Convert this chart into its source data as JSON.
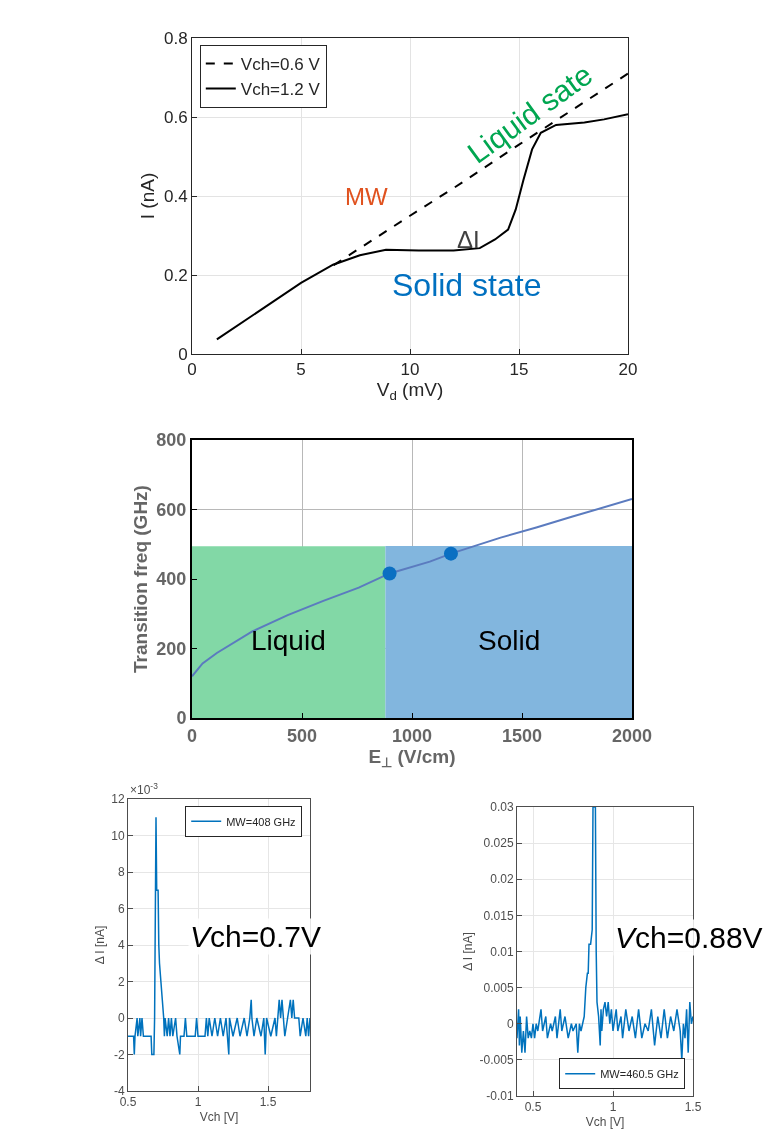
{
  "chart_data": [
    {
      "type": "line",
      "xlabel": "V$_{d}$ (mV)",
      "ylabel": "I (nA)",
      "xlim": [
        0,
        20
      ],
      "ylim": [
        0,
        0.8
      ],
      "xticks": [
        0,
        5,
        10,
        15,
        20
      ],
      "yticks": [
        0,
        0.2,
        0.4,
        0.6,
        0.8
      ],
      "grid": true,
      "legend": "top left",
      "annotations": [
        "Liquid sate",
        "MW",
        "ΔI",
        "Solid state"
      ],
      "series": [
        {
          "name": "Vch=0.6 V",
          "color": "#000000",
          "line_style": "dashed",
          "x": [
            6.5,
            10,
            12,
            15,
            20
          ],
          "values": [
            0.225,
            0.35,
            0.42,
            0.53,
            0.71
          ]
        },
        {
          "name": "Vch=1.2 V",
          "color": "#000000",
          "line_style": "solid",
          "x": [
            1.14,
            5,
            6.47,
            7.7,
            8.9,
            10.4,
            12,
            13.2,
            13.9,
            14.5,
            14.85,
            15.2,
            15.6,
            16.0,
            16.7,
            18.0,
            18.9,
            20
          ],
          "values": [
            0.037,
            0.18,
            0.226,
            0.25,
            0.264,
            0.262,
            0.262,
            0.268,
            0.29,
            0.315,
            0.366,
            0.44,
            0.518,
            0.56,
            0.58,
            0.586,
            0.594,
            0.607
          ]
        }
      ]
    },
    {
      "type": "line",
      "xlabel": "E$_{⊥}$ (V/cm)",
      "ylabel": "Transition freq (GHz)",
      "xlim": [
        0,
        2000
      ],
      "ylim": [
        0,
        800
      ],
      "xticks": [
        0,
        500,
        1000,
        1500,
        2000
      ],
      "yticks": [
        0,
        200,
        400,
        600,
        800
      ],
      "grid": true,
      "series": [
        {
          "type": "area",
          "name": "Liquid",
          "color": "#82d8a6",
          "x": [
            0,
            879
          ],
          "values": [
            494,
            494
          ]
        },
        {
          "type": "area",
          "name": "Solid",
          "color": "#82b6de",
          "x": [
            879,
            2000
          ],
          "values": [
            495,
            495
          ]
        },
        {
          "type": "line",
          "color": "#5b7bbf",
          "x": [
            0,
            48,
            113,
            274,
            435,
            597,
            758,
            898,
            1081,
            1177,
            1403,
            1565,
            1726,
            2000
          ],
          "values": [
            120,
            157,
            187,
            249,
            296,
            337,
            375,
            416,
            450,
            473,
            519,
            548,
            579,
            630
          ]
        },
        {
          "type": "scatter",
          "color": "#0a6fc2",
          "marker": "circle",
          "x": [
            898,
            1177
          ],
          "values": [
            416,
            473
          ]
        }
      ]
    },
    {
      "type": "line",
      "xlabel": "Vch [V]",
      "ylabel": "Δ I [nA]",
      "xlim": [
        0.5,
        1.8
      ],
      "ylim": [
        -4,
        12
      ],
      "xticks": [
        0.5,
        1,
        1.5
      ],
      "yticks": [
        -4,
        -2,
        0,
        2,
        4,
        6,
        8,
        10,
        12
      ],
      "grid": true,
      "legend": "top right",
      "annotations": [
        "×10$^{-3}$",
        "Vch=0.7V"
      ],
      "series": [
        {
          "name": "MW=408 GHz",
          "color": "#0072bd",
          "x": [
            0.5,
            0.54,
            0.545,
            0.55,
            0.565,
            0.57,
            0.585,
            0.59,
            0.6,
            0.61,
            0.665,
            0.67,
            0.685,
            0.69,
            0.7,
            0.705,
            0.715,
            0.72,
            0.725,
            0.735,
            0.745,
            0.755,
            0.76,
            0.765,
            0.78,
            0.79,
            0.8,
            0.81,
            0.82,
            0.84,
            0.85,
            0.87,
            0.875,
            0.9,
            0.91,
            0.92,
            0.98,
            0.99,
            1.0,
            1.05,
            1.06,
            1.07,
            1.08,
            1.1,
            1.12,
            1.14,
            1.16,
            1.18,
            1.2,
            1.22,
            1.225,
            1.25,
            1.28,
            1.3,
            1.33,
            1.35,
            1.37,
            1.38,
            1.385,
            1.4,
            1.42,
            1.45,
            1.47,
            1.48,
            1.49,
            1.52,
            1.55,
            1.56,
            1.58,
            1.59,
            1.6,
            1.61,
            1.62,
            1.64,
            1.66,
            1.67,
            1.68,
            1.69,
            1.72,
            1.73,
            1.75,
            1.77,
            1.78,
            1.79,
            1.8
          ],
          "values": [
            -1,
            -1,
            -2,
            -1,
            0,
            -1,
            0,
            -1,
            0,
            -1,
            -1,
            -2,
            -2,
            0,
            11,
            7,
            7,
            4,
            3,
            2,
            1,
            0,
            -1,
            0,
            -1,
            0,
            -1,
            0,
            -1,
            0,
            -1,
            -2,
            -1,
            -1,
            0,
            -1,
            -1,
            0,
            -1,
            -1,
            0,
            -1,
            0,
            -1,
            0,
            -1,
            0,
            -1,
            0,
            -2,
            0,
            -1,
            0,
            -1,
            0,
            -1,
            0,
            1,
            0,
            -1,
            0,
            -1,
            0,
            -2,
            0,
            -1,
            0,
            -1,
            1,
            0,
            1,
            0,
            -1,
            0,
            1,
            0,
            1,
            0,
            0,
            -1,
            0,
            -1,
            0,
            -1,
            0
          ]
        }
      ]
    },
    {
      "type": "line",
      "xlabel": "Vch [V]",
      "ylabel": "Δ I [nA]",
      "xlim": [
        0.4,
        1.5
      ],
      "ylim": [
        -0.01,
        0.03
      ],
      "xticks": [
        0.5,
        1,
        1.5
      ],
      "yticks": [
        -0.01,
        -0.005,
        0,
        0.005,
        0.01,
        0.015,
        0.02,
        0.025,
        0.03
      ],
      "grid": true,
      "legend": "bottom right",
      "annotations": [
        "Vch=0.88V"
      ],
      "series": [
        {
          "name": "MW=460.5 GHz",
          "color": "#0072bd",
          "x": [
            0.4,
            0.41,
            0.415,
            0.42,
            0.43,
            0.44,
            0.45,
            0.46,
            0.47,
            0.48,
            0.49,
            0.5,
            0.51,
            0.52,
            0.53,
            0.55,
            0.56,
            0.58,
            0.59,
            0.61,
            0.62,
            0.64,
            0.65,
            0.67,
            0.68,
            0.7,
            0.72,
            0.74,
            0.75,
            0.77,
            0.78,
            0.79,
            0.8,
            0.81,
            0.82,
            0.83,
            0.84,
            0.845,
            0.85,
            0.86,
            0.865,
            0.87,
            0.875,
            0.89,
            0.895,
            0.9,
            0.91,
            0.92,
            0.925,
            0.93,
            0.94,
            0.95,
            0.96,
            0.97,
            0.98,
            0.99,
            1.0,
            1.02,
            1.03,
            1.05,
            1.06,
            1.08,
            1.1,
            1.12,
            1.14,
            1.16,
            1.18,
            1.2,
            1.22,
            1.24,
            1.26,
            1.28,
            1.3,
            1.32,
            1.34,
            1.36,
            1.38,
            1.4,
            1.42,
            1.43,
            1.44,
            1.45,
            1.46,
            1.47,
            1.48,
            1.49,
            1.5
          ],
          "values": [
            -0.002,
            0.002,
            -0.003,
            0.001,
            -0.004,
            -0.001,
            -0.004,
            0.001,
            -0.002,
            -0.001,
            -0.002,
            0,
            -0.002,
            0,
            -0.001,
            0.002,
            -0.001,
            0.001,
            -0.002,
            0,
            -0.001,
            0.001,
            -0.002,
            0.002,
            -0.001,
            0.001,
            -0.002,
            0,
            -0.001,
            0,
            -0.004,
            0,
            -0.001,
            0,
            0.001,
            0.005,
            0.007,
            0.007,
            0.011,
            0.011,
            0.012,
            0.013,
            0.03,
            0.03,
            0.01,
            0.003,
            0.001,
            -0.003,
            0.002,
            -0.001,
            0.002,
            0.003,
            0.001,
            0.003,
            0,
            0.002,
            -0.001,
            0.002,
            -0.001,
            0.001,
            -0.002,
            0.002,
            -0.001,
            0.001,
            -0.002,
            0.002,
            -0.002,
            0,
            -0.001,
            0.002,
            -0.003,
            0.001,
            -0.002,
            0.002,
            -0.002,
            0.001,
            -0.001,
            0.002,
            -0.001,
            -0.005,
            0,
            -0.002,
            0.002,
            -0.004,
            0.003,
            0,
            0.001
          ]
        }
      ]
    }
  ]
}
